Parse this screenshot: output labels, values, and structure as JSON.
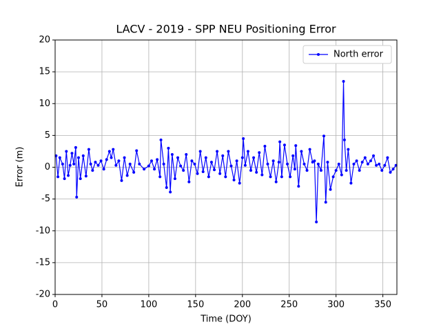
{
  "chart_data": {
    "type": "line",
    "title": "LACV - 2019 - SPP NEU Positioning Error",
    "xlabel": "Time (DOY)",
    "ylabel": "Error (m)",
    "x": [
      1,
      3,
      5,
      8,
      10,
      12,
      14,
      16,
      18,
      20,
      22,
      23,
      25,
      27,
      30,
      33,
      36,
      38,
      40,
      43,
      46,
      49,
      52,
      55,
      58,
      60,
      62,
      65,
      68,
      71,
      74,
      77,
      80,
      84,
      87,
      90,
      95,
      100,
      103,
      106,
      109,
      112,
      113,
      116,
      119,
      121,
      123,
      125,
      128,
      131,
      134,
      137,
      140,
      143,
      146,
      149,
      152,
      155,
      158,
      161,
      164,
      167,
      170,
      173,
      176,
      179,
      182,
      185,
      188,
      191,
      194,
      197,
      200,
      201,
      203,
      206,
      209,
      212,
      215,
      218,
      221,
      224,
      227,
      230,
      233,
      236,
      239,
      240,
      242,
      245,
      248,
      251,
      254,
      256,
      257,
      260,
      263,
      266,
      269,
      272,
      275,
      277,
      279,
      281,
      284,
      287,
      289,
      291,
      294,
      297,
      300,
      303,
      306,
      308,
      309,
      311,
      313,
      316,
      319,
      322,
      325,
      328,
      331,
      334,
      337,
      340,
      343,
      346,
      349,
      352,
      355,
      358,
      361,
      364
    ],
    "series": [
      {
        "name": "North error",
        "color": "#0000ff",
        "values": [
          1.8,
          -1.5,
          1.5,
          0.5,
          -1.8,
          2.5,
          -1.3,
          0.3,
          2.2,
          0.5,
          3.1,
          -4.7,
          1.5,
          -1.8,
          1.8,
          -1.4,
          2.8,
          0.5,
          -0.5,
          0.8,
          0.3,
          1.0,
          -0.3,
          1.2,
          2.5,
          1.5,
          2.8,
          0.3,
          1.0,
          -2.1,
          1.5,
          -1.3,
          0.5,
          -0.8,
          2.6,
          0.5,
          -0.3,
          0.2,
          1.0,
          -0.3,
          1.2,
          -1.5,
          4.3,
          0.5,
          -3.2,
          3.0,
          -3.9,
          2.0,
          -1.8,
          1.5,
          0.2,
          -0.5,
          2.0,
          -2.3,
          1.0,
          0.5,
          -1.0,
          2.5,
          -0.7,
          1.5,
          -1.5,
          0.8,
          -0.4,
          2.5,
          -1.0,
          1.8,
          -1.5,
          2.5,
          0.2,
          -2.0,
          1.0,
          -2.5,
          1.5,
          4.5,
          0.3,
          2.5,
          -0.5,
          1.5,
          -0.8,
          2.3,
          -1.2,
          3.3,
          0.5,
          -1.5,
          1.0,
          -2.3,
          0.8,
          4.0,
          -1.5,
          3.5,
          0.5,
          -1.5,
          1.8,
          -0.3,
          3.4,
          -3.0,
          2.5,
          0.5,
          -0.5,
          2.8,
          0.8,
          1.0,
          -8.6,
          0.5,
          -0.5,
          4.9,
          -5.5,
          0.8,
          -3.5,
          -1.5,
          -0.5,
          0.5,
          -1.2,
          13.5,
          4.3,
          -0.5,
          2.8,
          -2.5,
          0.5,
          1.0,
          -0.5,
          0.8,
          1.5,
          0.5,
          1.0,
          1.8,
          0.3,
          0.5,
          -0.5,
          0.3,
          1.5,
          -0.8,
          -0.3,
          0.3
        ]
      }
    ],
    "xlim": [
      0,
      365
    ],
    "ylim": [
      -20,
      20
    ],
    "xticks": [
      0,
      50,
      100,
      150,
      200,
      250,
      300,
      350
    ],
    "yticks": [
      -20,
      -15,
      -10,
      -5,
      0,
      5,
      10,
      15,
      20
    ],
    "grid": true,
    "legend": "upper right"
  }
}
